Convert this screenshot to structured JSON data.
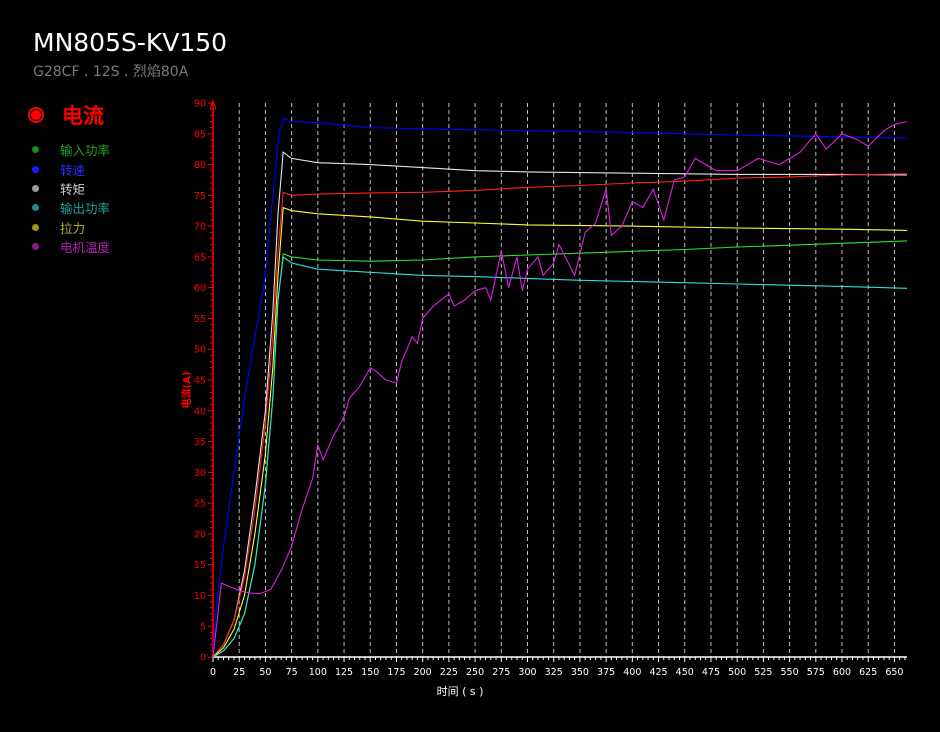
{
  "header": {
    "title": "MN805S-KV150",
    "subtitle": "G28CF . 12S . 烈焰80A"
  },
  "legend": {
    "active": "电流",
    "items": [
      {
        "label": "输入功率",
        "color": "#1a8a1a"
      },
      {
        "label": "转速",
        "color": "#1a1aff"
      },
      {
        "label": "转矩",
        "color": "#9a9a9a"
      },
      {
        "label": "输出功率",
        "color": "#1a8a8a"
      },
      {
        "label": "拉力",
        "color": "#9a9a1a"
      },
      {
        "label": "电机温度",
        "color": "#8a1a8a"
      }
    ]
  },
  "chart_data": {
    "type": "line",
    "xlabel": "时间 ( s )",
    "ylabel": "电流(A)",
    "xlim": [
      0,
      662
    ],
    "ylim": [
      0,
      90
    ],
    "xticks": [
      0,
      25,
      50,
      75,
      100,
      125,
      150,
      175,
      200,
      225,
      250,
      275,
      300,
      325,
      350,
      375,
      400,
      425,
      450,
      475,
      500,
      525,
      550,
      575,
      600,
      625,
      650
    ],
    "yticks": [
      0,
      5,
      10,
      15,
      20,
      25,
      30,
      35,
      40,
      45,
      50,
      55,
      60,
      65,
      70,
      75,
      80,
      85,
      90
    ],
    "grid": "vertical-dashed",
    "axis_color": "#ff0000",
    "series": [
      {
        "name": "转速",
        "color": "#0000ff",
        "points": [
          [
            0,
            0
          ],
          [
            3,
            8
          ],
          [
            10,
            18
          ],
          [
            20,
            30
          ],
          [
            30,
            42
          ],
          [
            40,
            52
          ],
          [
            50,
            62
          ],
          [
            57,
            75
          ],
          [
            63,
            85
          ],
          [
            67,
            87.5
          ],
          [
            75,
            87
          ],
          [
            100,
            86.8
          ],
          [
            150,
            86
          ],
          [
            200,
            85.8
          ],
          [
            300,
            85.5
          ],
          [
            400,
            85.2
          ],
          [
            500,
            84.8
          ],
          [
            600,
            84.5
          ],
          [
            662,
            84.3
          ]
        ]
      },
      {
        "name": "转矩",
        "color": "#e6e6e6",
        "points": [
          [
            0,
            0
          ],
          [
            10,
            2
          ],
          [
            20,
            6
          ],
          [
            30,
            14
          ],
          [
            40,
            26
          ],
          [
            50,
            40
          ],
          [
            57,
            56
          ],
          [
            62,
            72
          ],
          [
            67,
            82
          ],
          [
            75,
            81
          ],
          [
            100,
            80.3
          ],
          [
            150,
            80
          ],
          [
            200,
            79.5
          ],
          [
            250,
            79
          ],
          [
            300,
            78.8
          ],
          [
            400,
            78.6
          ],
          [
            500,
            78.4
          ],
          [
            600,
            78.4
          ],
          [
            662,
            78.3
          ]
        ]
      },
      {
        "name": "电流",
        "color": "#ff2020",
        "points": [
          [
            0,
            0
          ],
          [
            10,
            2
          ],
          [
            20,
            6
          ],
          [
            30,
            13
          ],
          [
            40,
            24
          ],
          [
            50,
            38
          ],
          [
            57,
            52
          ],
          [
            62,
            66
          ],
          [
            67,
            75.5
          ],
          [
            75,
            75
          ],
          [
            100,
            75.2
          ],
          [
            150,
            75.4
          ],
          [
            200,
            75.5
          ],
          [
            250,
            75.8
          ],
          [
            300,
            76.3
          ],
          [
            350,
            76.6
          ],
          [
            400,
            77
          ],
          [
            450,
            77.3
          ],
          [
            500,
            77.8
          ],
          [
            550,
            78
          ],
          [
            600,
            78.3
          ],
          [
            662,
            78.5
          ]
        ]
      },
      {
        "name": "拉力",
        "color": "#ffff30",
        "points": [
          [
            0,
            0
          ],
          [
            10,
            1.5
          ],
          [
            20,
            4.5
          ],
          [
            30,
            10
          ],
          [
            40,
            20
          ],
          [
            50,
            33
          ],
          [
            57,
            47
          ],
          [
            62,
            62
          ],
          [
            67,
            73
          ],
          [
            75,
            72.5
          ],
          [
            100,
            72
          ],
          [
            150,
            71.5
          ],
          [
            200,
            70.8
          ],
          [
            250,
            70.5
          ],
          [
            300,
            70.2
          ],
          [
            400,
            70
          ],
          [
            500,
            69.7
          ],
          [
            600,
            69.5
          ],
          [
            662,
            69.3
          ]
        ]
      },
      {
        "name": "输入功率",
        "color": "#30e030",
        "points": [
          [
            0,
            0
          ],
          [
            10,
            1
          ],
          [
            20,
            3
          ],
          [
            30,
            7
          ],
          [
            40,
            15
          ],
          [
            50,
            28
          ],
          [
            57,
            42
          ],
          [
            62,
            58
          ],
          [
            67,
            65.5
          ],
          [
            75,
            65
          ],
          [
            100,
            64.5
          ],
          [
            150,
            64.3
          ],
          [
            200,
            64.5
          ],
          [
            250,
            65
          ],
          [
            300,
            65.3
          ],
          [
            350,
            65.6
          ],
          [
            400,
            65.9
          ],
          [
            450,
            66.2
          ],
          [
            500,
            66.6
          ],
          [
            550,
            66.9
          ],
          [
            600,
            67.2
          ],
          [
            662,
            67.6
          ]
        ]
      },
      {
        "name": "输出功率",
        "color": "#30e0e0",
        "points": [
          [
            0,
            0
          ],
          [
            10,
            1
          ],
          [
            20,
            3
          ],
          [
            30,
            7
          ],
          [
            40,
            15
          ],
          [
            50,
            28
          ],
          [
            57,
            42
          ],
          [
            62,
            58
          ],
          [
            67,
            65
          ],
          [
            75,
            64
          ],
          [
            100,
            63
          ],
          [
            150,
            62.5
          ],
          [
            200,
            62
          ],
          [
            250,
            61.8
          ],
          [
            300,
            61.5
          ],
          [
            350,
            61.2
          ],
          [
            400,
            61
          ],
          [
            450,
            60.8
          ],
          [
            500,
            60.6
          ],
          [
            550,
            60.4
          ],
          [
            600,
            60.2
          ],
          [
            662,
            59.9
          ]
        ]
      },
      {
        "name": "电机温度",
        "color": "#e020e0",
        "points": [
          [
            0,
            0
          ],
          [
            8,
            12
          ],
          [
            15,
            11.5
          ],
          [
            25,
            10.8
          ],
          [
            35,
            10.4
          ],
          [
            45,
            10.3
          ],
          [
            55,
            11
          ],
          [
            65,
            14
          ],
          [
            75,
            18
          ],
          [
            85,
            24
          ],
          [
            95,
            29
          ],
          [
            100,
            34.5
          ],
          [
            105,
            32
          ],
          [
            115,
            36
          ],
          [
            125,
            39
          ],
          [
            130,
            42
          ],
          [
            140,
            44
          ],
          [
            150,
            47
          ],
          [
            155,
            46.5
          ],
          [
            165,
            45
          ],
          [
            175,
            44.5
          ],
          [
            180,
            48
          ],
          [
            190,
            52
          ],
          [
            195,
            51
          ],
          [
            200,
            55
          ],
          [
            210,
            57
          ],
          [
            225,
            59
          ],
          [
            230,
            57
          ],
          [
            240,
            58
          ],
          [
            250,
            59.5
          ],
          [
            260,
            60
          ],
          [
            265,
            58
          ],
          [
            275,
            66
          ],
          [
            282,
            60
          ],
          [
            290,
            65
          ],
          [
            295,
            59.5
          ],
          [
            300,
            63
          ],
          [
            310,
            65
          ],
          [
            315,
            62
          ],
          [
            325,
            64
          ],
          [
            330,
            67
          ],
          [
            345,
            62
          ],
          [
            355,
            69
          ],
          [
            365,
            70.5
          ],
          [
            375,
            76
          ],
          [
            380,
            68.5
          ],
          [
            390,
            70
          ],
          [
            400,
            74
          ],
          [
            410,
            73
          ],
          [
            420,
            76
          ],
          [
            430,
            71
          ],
          [
            440,
            77.5
          ],
          [
            450,
            78
          ],
          [
            460,
            81
          ],
          [
            470,
            80
          ],
          [
            480,
            79
          ],
          [
            500,
            79
          ],
          [
            520,
            81
          ],
          [
            540,
            80
          ],
          [
            560,
            82
          ],
          [
            575,
            85
          ],
          [
            585,
            82.5
          ],
          [
            600,
            85
          ],
          [
            615,
            84
          ],
          [
            625,
            83
          ],
          [
            640,
            85.5
          ],
          [
            650,
            86.5
          ],
          [
            662,
            87
          ]
        ]
      }
    ]
  }
}
